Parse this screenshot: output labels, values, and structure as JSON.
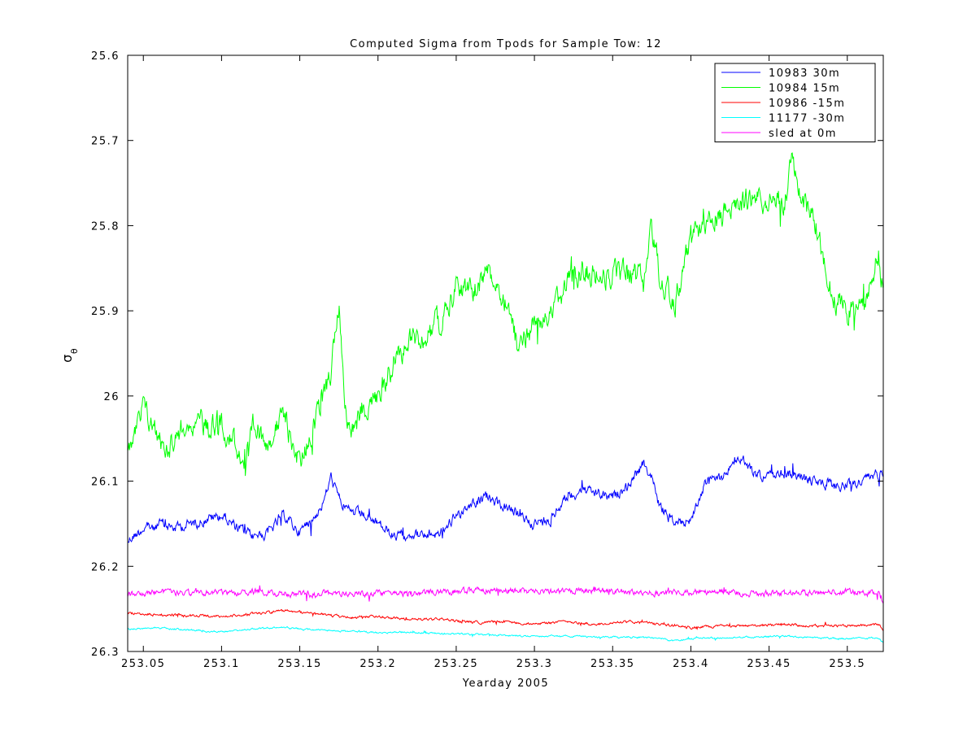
{
  "chart_data": {
    "type": "line",
    "title": "Computed Sigma from Tpods for Sample Tow: 12",
    "xlabel": "Yearday 2005",
    "ylabel_symbol": "σ",
    "ylabel_subscript": "θ",
    "xlim": [
      253.04,
      253.523
    ],
    "ylim": [
      25.6,
      26.3
    ],
    "y_reversed": true,
    "grid": false,
    "legend_position": "top-right",
    "x_ticks": [
      253.05,
      253.1,
      253.15,
      253.2,
      253.25,
      253.3,
      253.35,
      253.4,
      253.45,
      253.5
    ],
    "x_tick_labels": [
      "253.05",
      "253.1",
      "253.15",
      "253.2",
      "253.25",
      "253.3",
      "253.35",
      "253.4",
      "253.45",
      "253.5"
    ],
    "y_ticks": [
      25.6,
      25.7,
      25.8,
      25.9,
      26.0,
      26.1,
      26.2,
      26.3
    ],
    "y_tick_labels": [
      "25.6",
      "25.7",
      "25.8",
      "25.9",
      "26",
      "26.1",
      "26.2",
      "26.3"
    ],
    "series": [
      {
        "name": "10983 30m",
        "color": "#0000ff",
        "noise": 0.012,
        "x": [
          253.04,
          253.05,
          253.06,
          253.07,
          253.08,
          253.09,
          253.1,
          253.11,
          253.12,
          253.13,
          253.14,
          253.15,
          253.16,
          253.165,
          253.17,
          253.175,
          253.18,
          253.19,
          253.2,
          253.21,
          253.22,
          253.23,
          253.24,
          253.25,
          253.26,
          253.27,
          253.28,
          253.29,
          253.3,
          253.31,
          253.32,
          253.33,
          253.34,
          253.35,
          253.36,
          253.37,
          253.375,
          253.38,
          253.39,
          253.4,
          253.41,
          253.42,
          253.43,
          253.44,
          253.45,
          253.46,
          253.47,
          253.48,
          253.49,
          253.5,
          253.51,
          253.52,
          253.523
        ],
        "y": [
          26.17,
          26.155,
          26.15,
          26.155,
          26.15,
          26.145,
          26.14,
          26.155,
          26.165,
          26.16,
          26.14,
          26.16,
          26.14,
          26.125,
          26.095,
          26.12,
          26.135,
          26.14,
          26.15,
          26.165,
          26.16,
          26.165,
          26.16,
          26.14,
          26.125,
          26.12,
          26.13,
          26.14,
          26.15,
          26.145,
          26.12,
          26.11,
          26.115,
          26.12,
          26.105,
          26.08,
          26.095,
          26.13,
          26.15,
          26.145,
          26.1,
          26.095,
          26.07,
          26.09,
          26.095,
          26.09,
          26.095,
          26.1,
          26.105,
          26.105,
          26.1,
          26.09,
          26.09
        ]
      },
      {
        "name": "10984 15m",
        "color": "#00ff00",
        "noise": 0.028,
        "x": [
          253.04,
          253.045,
          253.05,
          253.055,
          253.06,
          253.065,
          253.07,
          253.08,
          253.09,
          253.1,
          253.11,
          253.115,
          253.12,
          253.13,
          253.14,
          253.15,
          253.16,
          253.17,
          253.175,
          253.18,
          253.185,
          253.19,
          253.2,
          253.21,
          253.22,
          253.23,
          253.24,
          253.25,
          253.26,
          253.27,
          253.28,
          253.285,
          253.29,
          253.3,
          253.31,
          253.32,
          253.33,
          253.34,
          253.35,
          253.36,
          253.37,
          253.375,
          253.38,
          253.39,
          253.4,
          253.41,
          253.42,
          253.43,
          253.44,
          253.45,
          253.46,
          253.465,
          253.47,
          253.48,
          253.49,
          253.5,
          253.51,
          253.52,
          253.523
        ],
        "y": [
          26.06,
          26.045,
          26.015,
          26.03,
          26.05,
          26.06,
          26.05,
          26.025,
          26.035,
          26.03,
          26.06,
          26.08,
          26.04,
          26.05,
          26.025,
          26.08,
          26.03,
          25.97,
          25.89,
          26.03,
          26.04,
          26.015,
          26.0,
          25.96,
          25.935,
          25.93,
          25.91,
          25.87,
          25.88,
          25.855,
          25.88,
          25.9,
          25.95,
          25.91,
          25.91,
          25.87,
          25.85,
          25.86,
          25.86,
          25.85,
          25.87,
          25.8,
          25.86,
          25.89,
          25.81,
          25.8,
          25.79,
          25.77,
          25.77,
          25.77,
          25.77,
          25.72,
          25.77,
          25.8,
          25.88,
          25.9,
          25.9,
          25.83,
          25.88
        ]
      },
      {
        "name": "10986 -15m",
        "color": "#ff0000",
        "noise": 0.003,
        "x": [
          253.04,
          253.06,
          253.08,
          253.1,
          253.12,
          253.14,
          253.16,
          253.18,
          253.2,
          253.22,
          253.24,
          253.26,
          253.28,
          253.3,
          253.32,
          253.34,
          253.36,
          253.38,
          253.4,
          253.42,
          253.44,
          253.46,
          253.48,
          253.5,
          253.52,
          253.523
        ],
        "y": [
          26.255,
          26.257,
          26.258,
          26.259,
          26.256,
          26.252,
          26.256,
          26.26,
          26.259,
          26.262,
          26.262,
          26.266,
          26.265,
          26.268,
          26.265,
          26.268,
          26.265,
          26.268,
          26.272,
          26.27,
          26.27,
          26.268,
          26.27,
          26.27,
          26.268,
          26.275
        ]
      },
      {
        "name": "11177 -30m",
        "color": "#00ffff",
        "noise": 0.002,
        "x": [
          253.04,
          253.06,
          253.08,
          253.1,
          253.12,
          253.14,
          253.16,
          253.18,
          253.2,
          253.22,
          253.24,
          253.26,
          253.28,
          253.3,
          253.32,
          253.34,
          253.36,
          253.38,
          253.39,
          253.4,
          253.42,
          253.44,
          253.46,
          253.48,
          253.5,
          253.52,
          253.523
        ],
        "y": [
          26.274,
          26.272,
          26.275,
          26.277,
          26.273,
          26.272,
          26.275,
          26.276,
          26.278,
          26.277,
          26.279,
          26.28,
          26.281,
          26.282,
          26.282,
          26.283,
          26.283,
          26.284,
          26.288,
          26.285,
          26.284,
          26.283,
          26.282,
          26.284,
          26.285,
          26.284,
          26.29
        ]
      },
      {
        "name": "sled at 0m",
        "color": "#ff00ff",
        "noise": 0.007,
        "x": [
          253.04,
          253.06,
          253.08,
          253.1,
          253.12,
          253.14,
          253.16,
          253.18,
          253.2,
          253.22,
          253.24,
          253.26,
          253.28,
          253.3,
          253.32,
          253.34,
          253.36,
          253.38,
          253.4,
          253.42,
          253.44,
          253.46,
          253.48,
          253.5,
          253.52,
          253.523
        ],
        "y": [
          26.233,
          26.23,
          26.232,
          26.232,
          26.23,
          26.232,
          26.233,
          26.232,
          26.232,
          26.232,
          26.23,
          26.228,
          26.228,
          26.23,
          26.23,
          26.228,
          26.23,
          26.232,
          26.23,
          26.23,
          26.232,
          26.232,
          26.23,
          26.23,
          26.232,
          26.245
        ]
      }
    ]
  }
}
